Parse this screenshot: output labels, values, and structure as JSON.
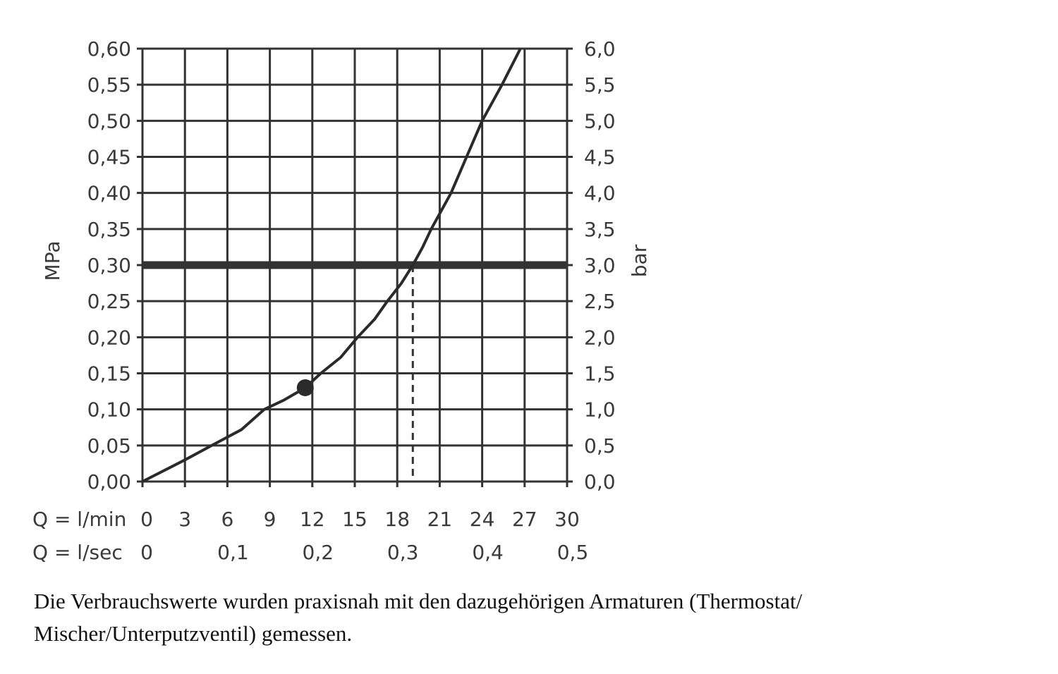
{
  "chart_data": {
    "type": "line",
    "left_axis": {
      "label": "MPa",
      "range": [
        0,
        0.6
      ],
      "ticks": [
        "0,00",
        "0,05",
        "0,10",
        "0,15",
        "0,20",
        "0,25",
        "0,30",
        "0,35",
        "0,40",
        "0,45",
        "0,50",
        "0,55",
        "0,60"
      ]
    },
    "right_axis": {
      "label": "bar",
      "range": [
        0,
        6
      ],
      "ticks": [
        "0,0",
        "0,5",
        "1,0",
        "1,5",
        "2,0",
        "2,5",
        "3,0",
        "3,5",
        "4,0",
        "4,5",
        "5,0",
        "5,5",
        "6,0"
      ]
    },
    "x_axis": {
      "label": "Q = l/min",
      "range": [
        0,
        30
      ],
      "ticks": [
        "0",
        "3",
        "6",
        "9",
        "12",
        "15",
        "18",
        "21",
        "24",
        "27",
        "30"
      ]
    },
    "x_axis2": {
      "label": "Q = l/sec",
      "ticks": [
        "0",
        "0,1",
        "0,2",
        "0,3",
        "0,4",
        "0,5"
      ],
      "values_lmin": [
        0,
        6,
        12,
        18,
        24,
        30
      ]
    },
    "series": [
      {
        "name": "flow curve",
        "x": [
          0,
          3,
          4.9,
          7,
          8.6,
          10,
          11.5,
          12.6,
          14,
          15.2,
          16.4,
          17.3,
          18.3,
          19.1,
          19.8,
          20.4,
          21.8,
          22.9,
          24.0,
          25.4,
          26.7
        ],
        "y": [
          0,
          0.03,
          0.05,
          0.072,
          0.1,
          0.113,
          0.13,
          0.15,
          0.172,
          0.2,
          0.225,
          0.25,
          0.275,
          0.3,
          0.325,
          0.35,
          0.4,
          0.45,
          0.5,
          0.55,
          0.6
        ]
      }
    ],
    "marker": {
      "x": 11.5,
      "y": 0.13
    },
    "reference_line": {
      "y": 0.3
    },
    "dashed_line": {
      "x": 19.1,
      "y": 0.3
    },
    "grid": true,
    "note": "Die Verbrauchswerte wurden praxisnah mit den dazugehörigen Armaturen (Thermostat/ Mischer/Unterputzventil) gemessen."
  }
}
